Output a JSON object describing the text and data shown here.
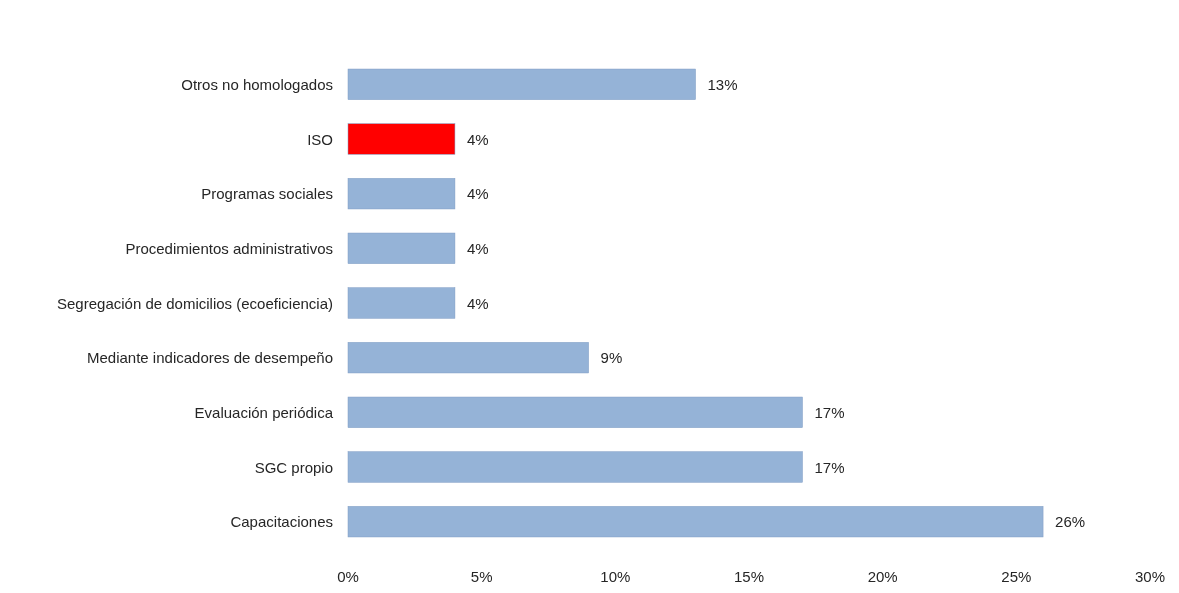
{
  "chart_data": {
    "type": "bar",
    "orientation": "horizontal",
    "categories": [
      "Otros no homologados",
      "ISO",
      "Programas sociales",
      "Procedimientos administrativos",
      "Segregación de domicilios (ecoeficiencia)",
      "Mediante indicadores de desempeño",
      "Evaluación periódica",
      "SGC propio",
      "Capacitaciones"
    ],
    "values": [
      13,
      4,
      4,
      4,
      4,
      9,
      17,
      17,
      26
    ],
    "colors": [
      "#95b3d7",
      "#ff0000",
      "#95b3d7",
      "#95b3d7",
      "#95b3d7",
      "#95b3d7",
      "#95b3d7",
      "#95b3d7",
      "#95b3d7"
    ],
    "value_labels": [
      "13%",
      "4%",
      "4%",
      "4%",
      "4%",
      "9%",
      "17%",
      "17%",
      "26%"
    ],
    "xlim": [
      0,
      30
    ],
    "xticks": [
      {
        "value": 0,
        "label": "0%"
      },
      {
        "value": 5,
        "label": "5%"
      },
      {
        "value": 10,
        "label": "10%"
      },
      {
        "value": 15,
        "label": "15%"
      },
      {
        "value": 20,
        "label": "20%"
      },
      {
        "value": 25,
        "label": "25%"
      },
      {
        "value": 30,
        "label": "30%"
      }
    ],
    "grid": false
  }
}
